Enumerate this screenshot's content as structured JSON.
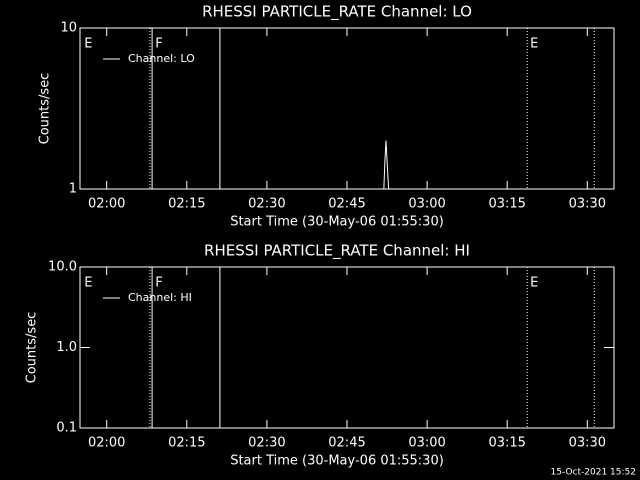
{
  "chart_data": [
    {
      "type": "line",
      "title": "RHESSI PARTICLE_RATE Channel: LO",
      "x_label": "Start Time (30-May-06 01:55:30)",
      "y_label": "Counts/sec",
      "xlim": [
        115,
        215
      ],
      "xticks": [
        {
          "value": 120,
          "label": "02:00"
        },
        {
          "value": 135,
          "label": "02:15"
        },
        {
          "value": 150,
          "label": "02:30"
        },
        {
          "value": 165,
          "label": "02:45"
        },
        {
          "value": 180,
          "label": "03:00"
        },
        {
          "value": 195,
          "label": "03:15"
        },
        {
          "value": 210,
          "label": "03:30"
        }
      ],
      "ylim": [
        1,
        10
      ],
      "yticks": [
        1,
        10
      ],
      "log_y": true,
      "series": [
        {
          "name": "Channel: LO",
          "color": "#ffffff",
          "x": [
            171.9,
            172.1,
            172.3,
            172.5,
            172.8
          ],
          "values": [
            1,
            1.5,
            2,
            1.5,
            1
          ]
        }
      ],
      "lines": [
        {
          "x": 128.1,
          "style": "dotted"
        },
        {
          "x": 128.5,
          "style": "solid"
        },
        {
          "x": 141.2,
          "style": "solid"
        },
        {
          "x": 198.75,
          "style": "dotted"
        },
        {
          "x": 211.3,
          "style": "dotted"
        }
      ],
      "flags": [
        {
          "x": 115.8,
          "text": "E"
        },
        {
          "x": 129.1,
          "text": "F"
        },
        {
          "x": 199.3,
          "text": "E"
        }
      ]
    },
    {
      "type": "line",
      "title": "RHESSI PARTICLE_RATE Channel: HI",
      "x_label": "Start Time (30-May-06 01:55:30)",
      "y_label": "Counts/sec",
      "xlim": [
        115,
        215
      ],
      "xticks": [
        {
          "value": 120,
          "label": "02:00"
        },
        {
          "value": 135,
          "label": "02:15"
        },
        {
          "value": 150,
          "label": "02:30"
        },
        {
          "value": 165,
          "label": "02:45"
        },
        {
          "value": 180,
          "label": "03:00"
        },
        {
          "value": 195,
          "label": "03:15"
        },
        {
          "value": 210,
          "label": "03:30"
        }
      ],
      "ylim": [
        0.1,
        10
      ],
      "yticks": [
        {
          "value": 0.1,
          "label": "0.1"
        },
        {
          "value": 1,
          "label": "1.0"
        },
        {
          "value": 10,
          "label": "10.0"
        }
      ],
      "log_y": true,
      "series": [
        {
          "name": "Channel: HI",
          "color": "#ffffff",
          "x": [],
          "values": []
        }
      ],
      "lines": [
        {
          "x": 128.1,
          "style": "dotted"
        },
        {
          "x": 128.5,
          "style": "solid"
        },
        {
          "x": 141.2,
          "style": "solid"
        },
        {
          "x": 198.75,
          "style": "dotted"
        },
        {
          "x": 211.3,
          "style": "dotted"
        }
      ],
      "flags": [
        {
          "x": 115.8,
          "text": "E"
        },
        {
          "x": 129.1,
          "text": "F"
        },
        {
          "x": 199.3,
          "text": "E"
        }
      ]
    }
  ],
  "footer": "15-Oct-2021 15:52"
}
